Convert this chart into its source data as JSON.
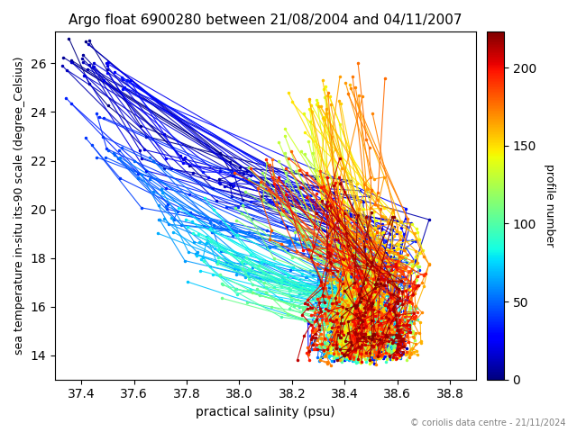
{
  "title": "Argo float 6900280 between 21/08/2004 and 04/11/2007",
  "xlabel": "practical salinity (psu)",
  "ylabel": "sea temperature in-situ its-90 scale (degree_Celsius)",
  "colorbar_label": "profile number",
  "xlim": [
    37.3,
    38.9
  ],
  "ylim": [
    13.0,
    27.3
  ],
  "vmin": 0,
  "vmax": 223,
  "cmap": "jet",
  "copyright_text": "© coriolis data centre - 21/11/2024",
  "n_profiles": 223,
  "marker_size": 3,
  "line_width": 0.8,
  "title_fontsize": 11,
  "label_fontsize": 10,
  "ylabel_fontsize": 9,
  "cbar_label_fontsize": 9
}
